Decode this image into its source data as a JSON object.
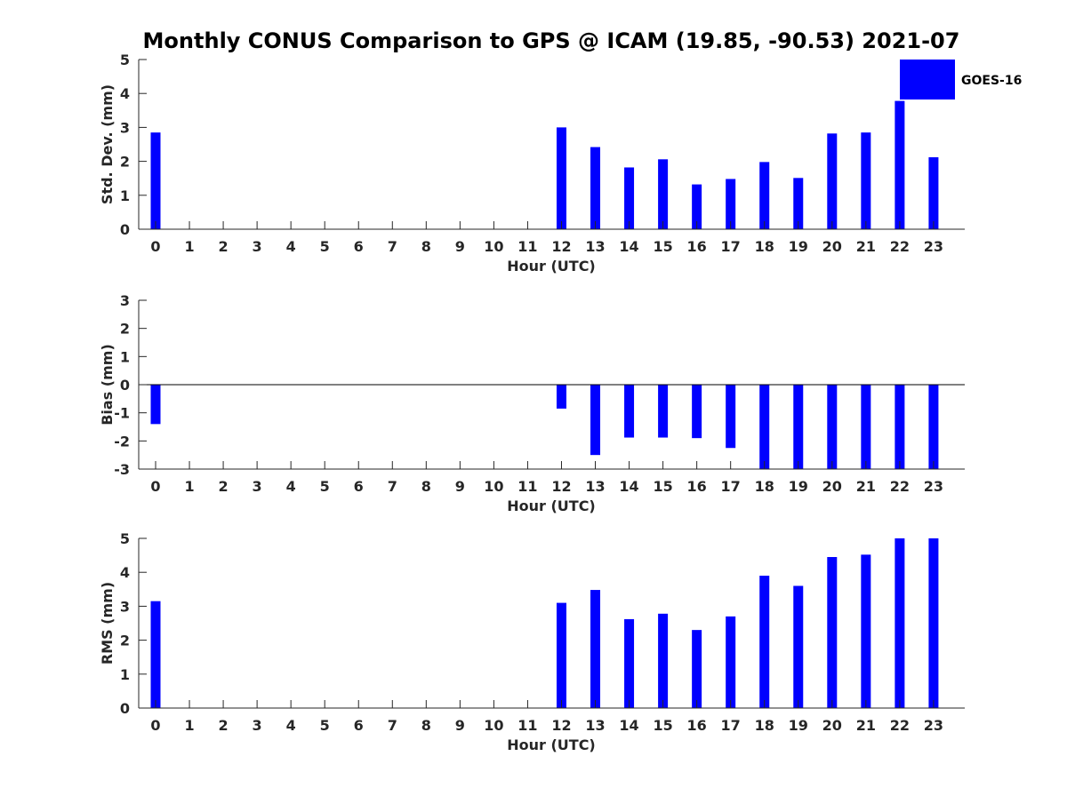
{
  "title": "Monthly CONUS Comparison to GPS @ ICAM (19.85, -90.53) 2021-07",
  "legend": {
    "label": "GOES-16",
    "color": "#0000ff",
    "placement": "top-right"
  },
  "colors": {
    "bar": "#0000ff",
    "axis": "#262626",
    "zero_line": "#000000",
    "background": "#ffffff"
  },
  "chart_data": [
    {
      "type": "bar",
      "xlabel": "Hour (UTC)",
      "ylabel": "Std. Dev. (mm)",
      "ylim": [
        0,
        5
      ],
      "yticks": [
        0,
        1,
        2,
        3,
        4,
        5
      ],
      "categories": [
        "0",
        "1",
        "2",
        "3",
        "4",
        "5",
        "6",
        "7",
        "8",
        "9",
        "10",
        "11",
        "12",
        "13",
        "14",
        "15",
        "16",
        "17",
        "18",
        "19",
        "20",
        "21",
        "22",
        "23"
      ],
      "series": [
        {
          "name": "GOES-16",
          "values": [
            2.85,
            null,
            null,
            null,
            null,
            null,
            null,
            null,
            null,
            null,
            null,
            null,
            3.0,
            2.42,
            1.82,
            2.06,
            1.32,
            1.48,
            1.98,
            1.51,
            2.82,
            2.85,
            3.78,
            2.12
          ]
        }
      ],
      "grid": false
    },
    {
      "type": "bar",
      "xlabel": "Hour (UTC)",
      "ylabel": "Bias (mm)",
      "ylim": [
        -3,
        3
      ],
      "yticks": [
        -3,
        -2,
        -1,
        0,
        1,
        2,
        3
      ],
      "zero_line": true,
      "categories": [
        "0",
        "1",
        "2",
        "3",
        "4",
        "5",
        "6",
        "7",
        "8",
        "9",
        "10",
        "11",
        "12",
        "13",
        "14",
        "15",
        "16",
        "17",
        "18",
        "19",
        "20",
        "21",
        "22",
        "23"
      ],
      "series": [
        {
          "name": "GOES-16",
          "values": [
            -1.4,
            null,
            null,
            null,
            null,
            null,
            null,
            null,
            null,
            null,
            null,
            null,
            -0.85,
            -2.5,
            -1.88,
            -1.88,
            -1.9,
            -2.25,
            -3.0,
            -3.0,
            -3.0,
            -3.0,
            -3.0,
            -3.0
          ]
        }
      ],
      "grid": false
    },
    {
      "type": "bar",
      "xlabel": "Hour (UTC)",
      "ylabel": "RMS (mm)",
      "ylim": [
        0,
        5
      ],
      "yticks": [
        0,
        1,
        2,
        3,
        4,
        5
      ],
      "categories": [
        "0",
        "1",
        "2",
        "3",
        "4",
        "5",
        "6",
        "7",
        "8",
        "9",
        "10",
        "11",
        "12",
        "13",
        "14",
        "15",
        "16",
        "17",
        "18",
        "19",
        "20",
        "21",
        "22",
        "23"
      ],
      "series": [
        {
          "name": "GOES-16",
          "values": [
            3.15,
            null,
            null,
            null,
            null,
            null,
            null,
            null,
            null,
            null,
            null,
            null,
            3.1,
            3.48,
            2.62,
            2.78,
            2.3,
            2.7,
            3.9,
            3.6,
            4.45,
            4.52,
            5.0,
            5.0
          ]
        }
      ],
      "grid": false
    }
  ]
}
